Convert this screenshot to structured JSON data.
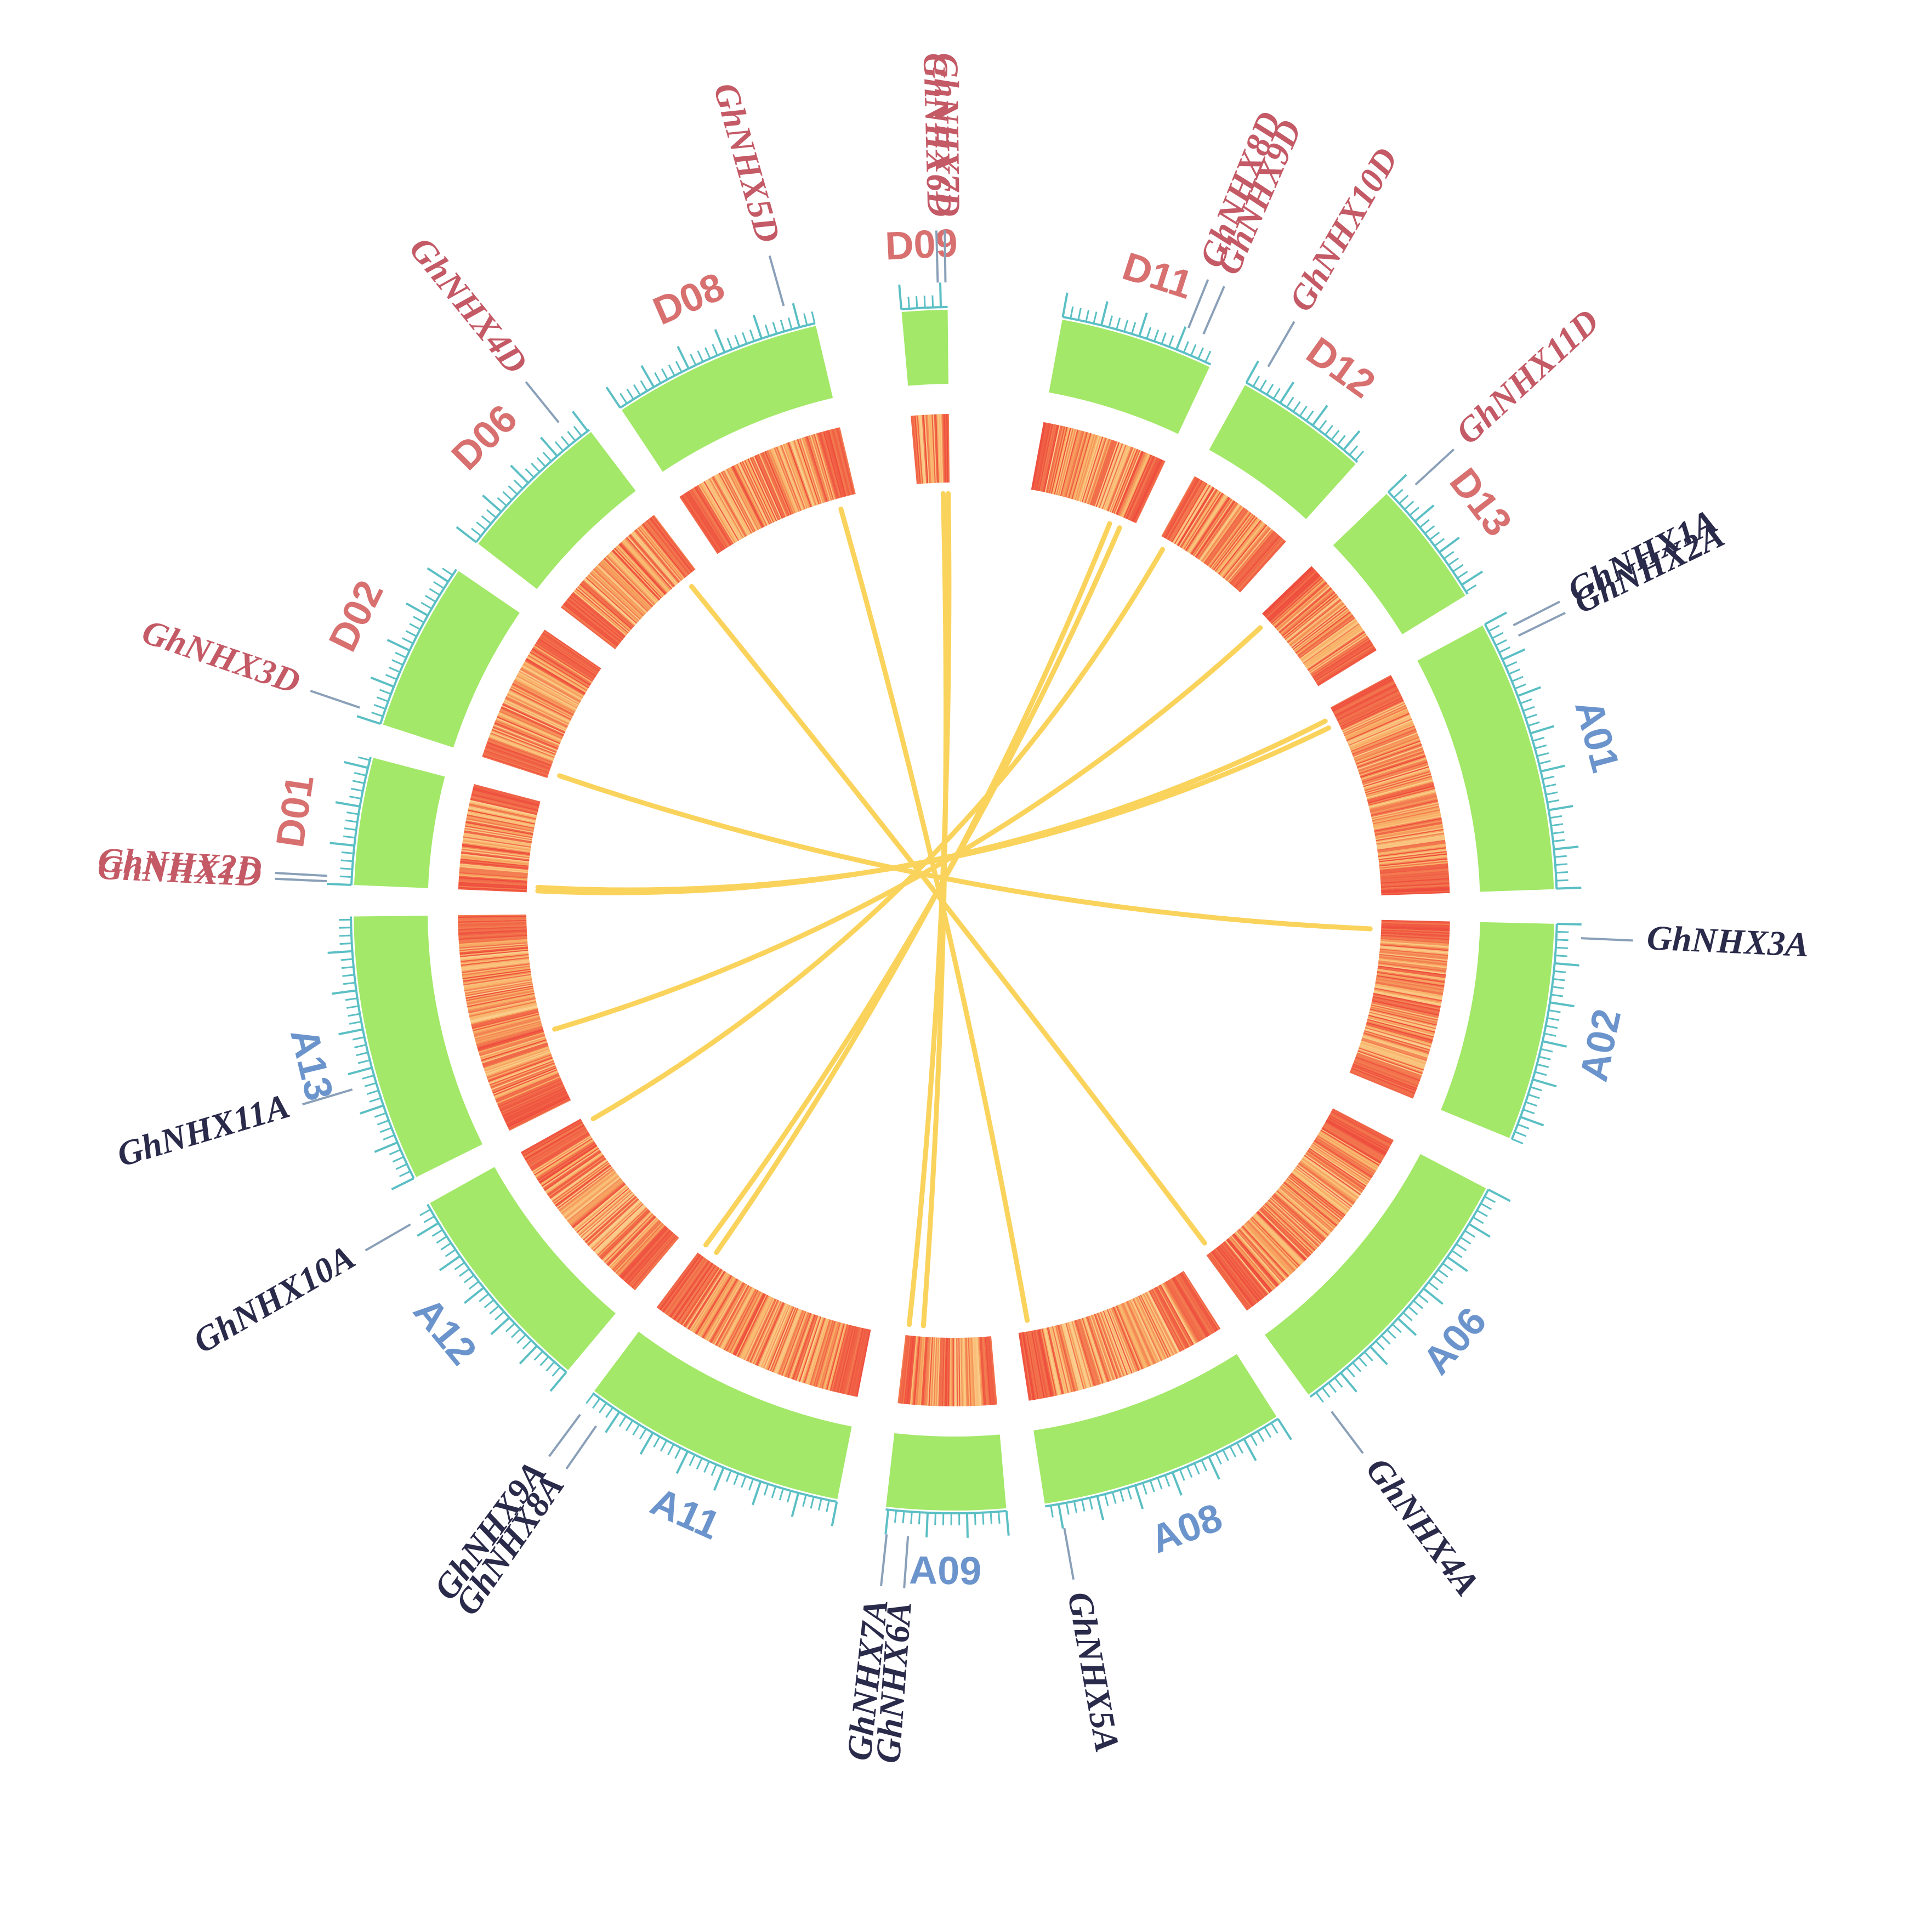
{
  "figure": {
    "colors": {
      "a_genome_label": "#6b94cc",
      "d_genome_label": "#d87070",
      "a_gene_label": "#2a2a4a",
      "d_gene_label": "#c45a66",
      "ideogram_fill": "#a3e868",
      "tick": "#5bbfc4",
      "leader_line": "#8aa0b8",
      "link": "#fad35c",
      "heat_low": "#fdeeb8",
      "heat_mid": "#f8b166",
      "heat_high": "#ee4b3c"
    },
    "chromosomes": [
      {
        "id": "A01",
        "genome": "A"
      },
      {
        "id": "A02",
        "genome": "A"
      },
      {
        "id": "A06",
        "genome": "A"
      },
      {
        "id": "A08",
        "genome": "A"
      },
      {
        "id": "A09",
        "genome": "A"
      },
      {
        "id": "A11",
        "genome": "A"
      },
      {
        "id": "A12",
        "genome": "A"
      },
      {
        "id": "A13",
        "genome": "A"
      },
      {
        "id": "D01",
        "genome": "D"
      },
      {
        "id": "D02",
        "genome": "D"
      },
      {
        "id": "D06",
        "genome": "D"
      },
      {
        "id": "D08",
        "genome": "D"
      },
      {
        "id": "D09",
        "genome": "D"
      },
      {
        "id": "D11",
        "genome": "D"
      },
      {
        "id": "D12",
        "genome": "D"
      },
      {
        "id": "D13",
        "genome": "D"
      }
    ],
    "genes": [
      {
        "name": "GhNHX1A",
        "chr": "A01",
        "pos": 0.05
      },
      {
        "name": "GhNHX2A",
        "chr": "A01",
        "pos": 0.09
      },
      {
        "name": "GhNHX3A",
        "chr": "A02",
        "pos": 0.06
      },
      {
        "name": "GhNHX4A",
        "chr": "A06",
        "pos": 0.97
      },
      {
        "name": "GhNHX5A",
        "chr": "A08",
        "pos": 0.94
      },
      {
        "name": "GhNHX6A",
        "chr": "A09",
        "pos": 0.8
      },
      {
        "name": "GhNHX7A",
        "chr": "A09",
        "pos": 0.97
      },
      {
        "name": "GhNHX8A",
        "chr": "A11",
        "pos": 0.92
      },
      {
        "name": "GhNHX9A",
        "chr": "A11",
        "pos": 0.99
      },
      {
        "name": "GhNHX10A",
        "chr": "A12",
        "pos": 0.96
      },
      {
        "name": "GhNHX11A",
        "chr": "A13",
        "pos": 0.38
      },
      {
        "name": "GhNHX1D",
        "chr": "D01",
        "pos": 0.02
      },
      {
        "name": "GhNHX2D",
        "chr": "D01",
        "pos": 0.06
      },
      {
        "name": "GhNHX3D",
        "chr": "D02",
        "pos": 0.05
      },
      {
        "name": "GhNHX4D",
        "chr": "D06",
        "pos": 0.88
      },
      {
        "name": "GhNHX5D",
        "chr": "D08",
        "pos": 0.88
      },
      {
        "name": "GhNHX6D",
        "chr": "D09",
        "pos": 0.8
      },
      {
        "name": "GhNHX7D",
        "chr": "D09",
        "pos": 0.96
      },
      {
        "name": "GhNHX8D",
        "chr": "D11",
        "pos": 0.78
      },
      {
        "name": "GhNHX9D",
        "chr": "D11",
        "pos": 0.88
      },
      {
        "name": "GhNHX10D",
        "chr": "D12",
        "pos": 0.08
      },
      {
        "name": "GhNHX11D",
        "chr": "D13",
        "pos": 0.1
      }
    ],
    "links": [
      [
        "GhNHX1A",
        "GhNHX1D"
      ],
      [
        "GhNHX2A",
        "GhNHX2D"
      ],
      [
        "GhNHX3A",
        "GhNHX3D"
      ],
      [
        "GhNHX4A",
        "GhNHX4D"
      ],
      [
        "GhNHX5A",
        "GhNHX5D"
      ],
      [
        "GhNHX6A",
        "GhNHX6D"
      ],
      [
        "GhNHX7A",
        "GhNHX7D"
      ],
      [
        "GhNHX8A",
        "GhNHX8D"
      ],
      [
        "GhNHX9A",
        "GhNHX9D"
      ],
      [
        "GhNHX10A",
        "GhNHX10D"
      ],
      [
        "GhNHX11A",
        "GhNHX11D"
      ]
    ]
  }
}
